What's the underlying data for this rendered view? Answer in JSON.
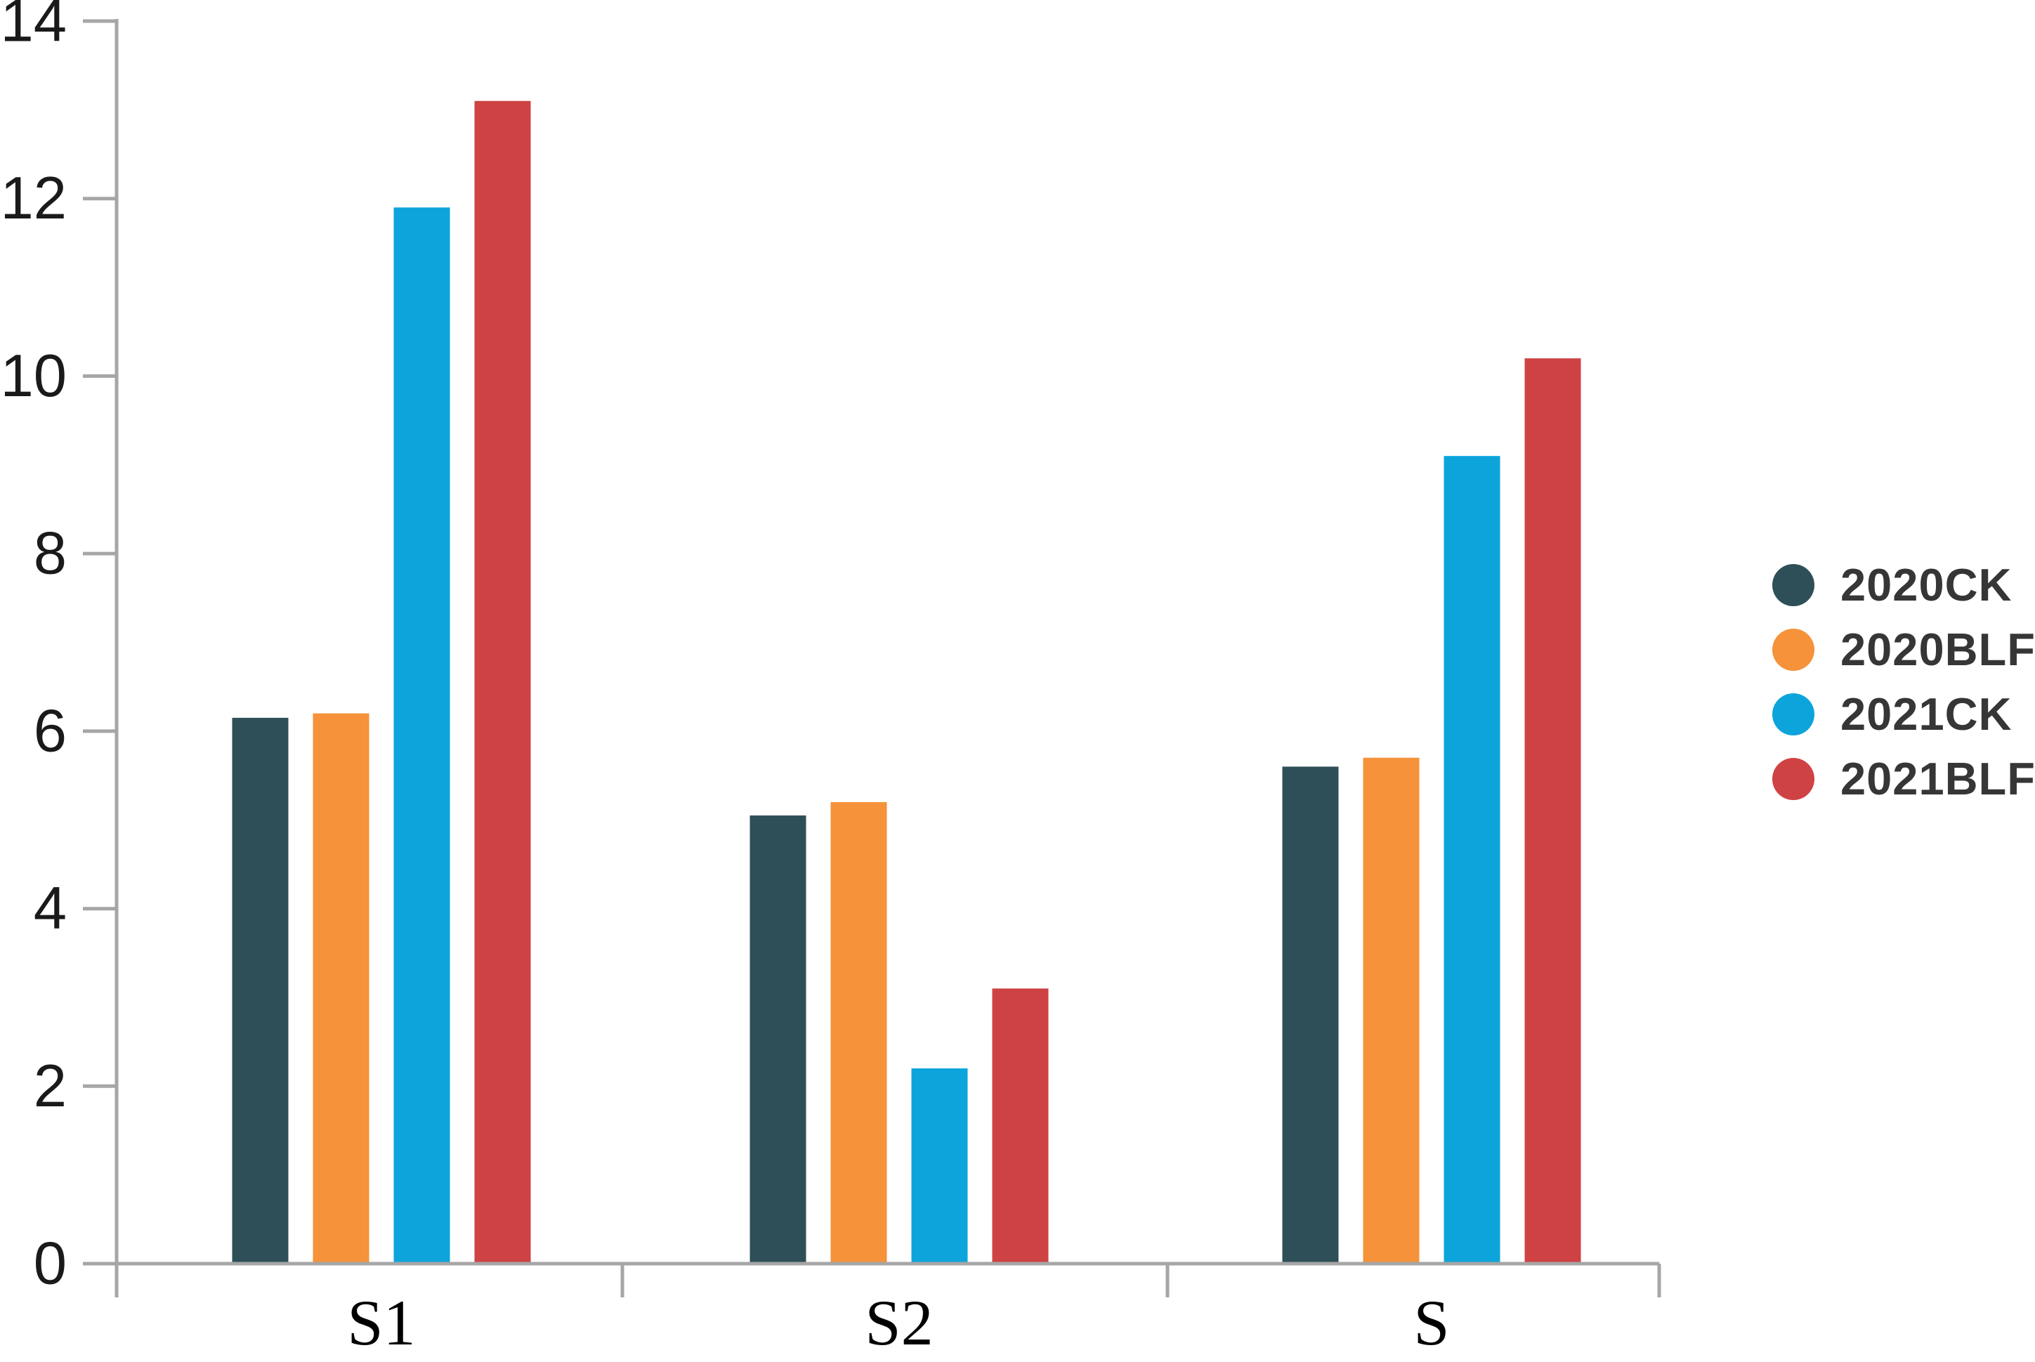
{
  "chart_data": {
    "type": "bar",
    "title": "",
    "xlabel": "",
    "ylabel": "",
    "categories": [
      "S1",
      "S2",
      "S"
    ],
    "series": [
      {
        "name": "2020CK",
        "color": "#2E4F58",
        "values": [
          6.15,
          5.05,
          5.6
        ]
      },
      {
        "name": "2020BLF",
        "color": "#F5923A",
        "values": [
          6.2,
          5.2,
          5.7
        ]
      },
      {
        "name": "2021CK",
        "color": "#0DA4DC",
        "values": [
          11.9,
          2.2,
          9.1
        ]
      },
      {
        "name": "2021BLF",
        "color": "#CF4244",
        "values": [
          13.1,
          3.1,
          10.2
        ]
      }
    ],
    "ylim": [
      0,
      14
    ],
    "ytick_step": 2,
    "yticks": [
      0,
      2,
      4,
      6,
      8,
      10,
      12,
      14
    ],
    "grid": false,
    "legend_position": "right",
    "axis_color": "#A6A6A6",
    "tick_label_color": "#1A1A1A",
    "category_label_color": "#000000",
    "legend_text_color": "#363636"
  }
}
